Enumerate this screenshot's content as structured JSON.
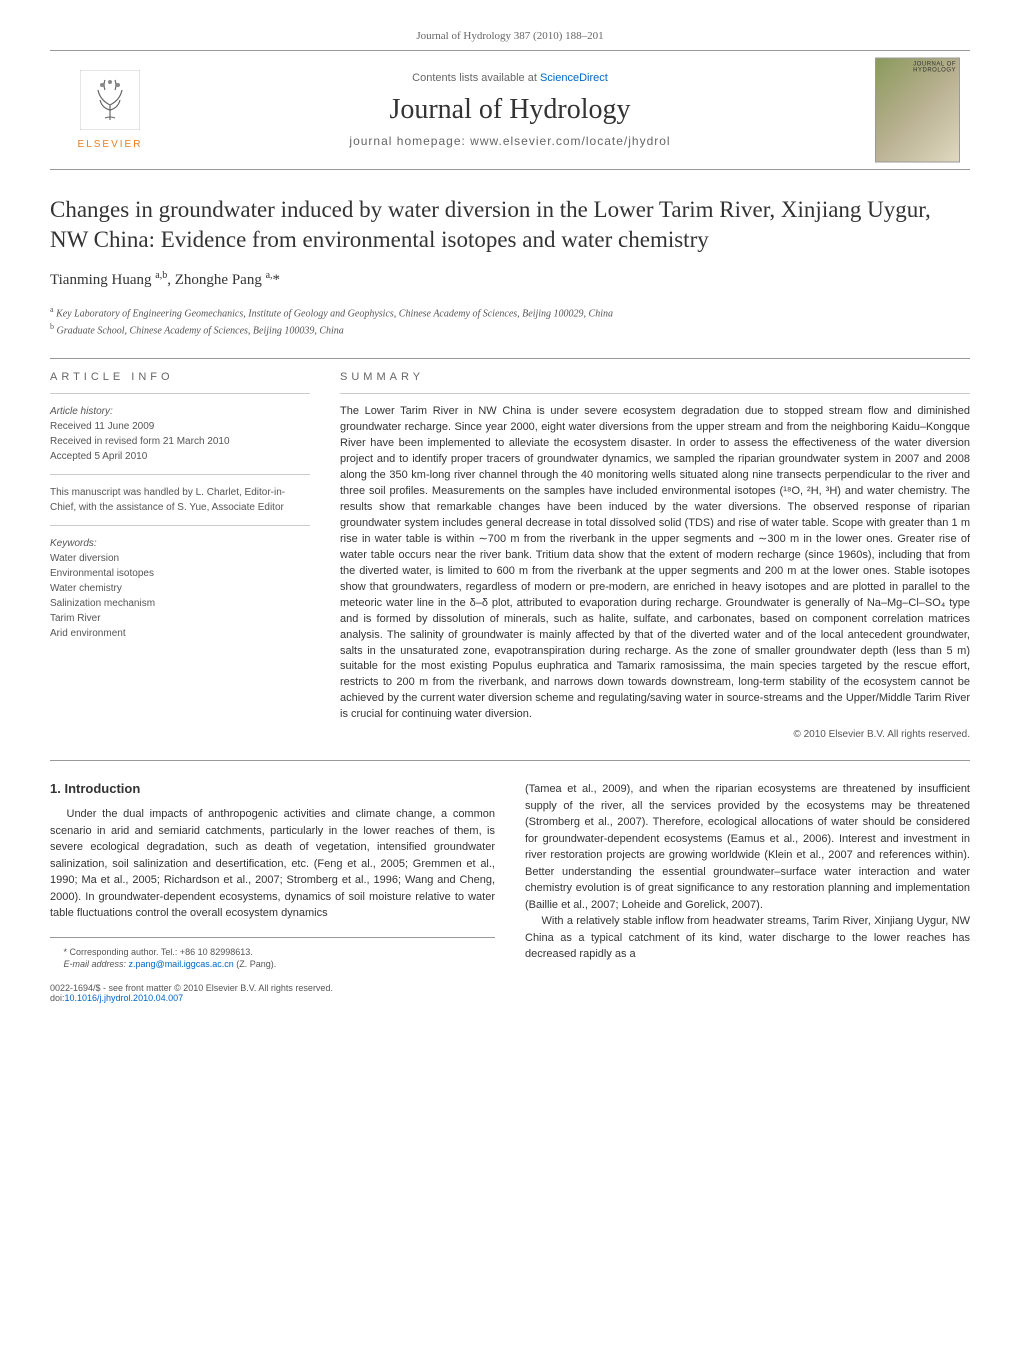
{
  "citation": "Journal of Hydrology 387 (2010) 188–201",
  "header": {
    "contents_prefix": "Contents lists available at ",
    "contents_link": "ScienceDirect",
    "journal_name": "Journal of Hydrology",
    "homepage_prefix": "journal homepage: ",
    "homepage_url": "www.elsevier.com/locate/jhydrol",
    "publisher_name": "ELSEVIER",
    "cover_label": "JOURNAL OF HYDROLOGY"
  },
  "article": {
    "title": "Changes in groundwater induced by water diversion in the Lower Tarim River, Xinjiang Uygur, NW China: Evidence from environmental isotopes and water chemistry",
    "authors_html": "Tianming Huang <sup>a,b</sup>, Zhonghe Pang <sup>a,</sup>*",
    "affiliations": [
      {
        "mark": "a",
        "text": "Key Laboratory of Engineering Geomechanics, Institute of Geology and Geophysics, Chinese Academy of Sciences, Beijing 100029, China"
      },
      {
        "mark": "b",
        "text": "Graduate School, Chinese Academy of Sciences, Beijing 100039, China"
      }
    ]
  },
  "article_info": {
    "heading": "ARTICLE INFO",
    "history_label": "Article history:",
    "history": [
      "Received 11 June 2009",
      "Received in revised form 21 March 2010",
      "Accepted 5 April 2010"
    ],
    "handled_by": "This manuscript was handled by L. Charlet, Editor-in-Chief, with the assistance of S. Yue, Associate Editor",
    "keywords_label": "Keywords:",
    "keywords": [
      "Water diversion",
      "Environmental isotopes",
      "Water chemistry",
      "Salinization mechanism",
      "Tarim River",
      "Arid environment"
    ]
  },
  "summary": {
    "heading": "SUMMARY",
    "text": "The Lower Tarim River in NW China is under severe ecosystem degradation due to stopped stream flow and diminished groundwater recharge. Since year 2000, eight water diversions from the upper stream and from the neighboring Kaidu–Kongque River have been implemented to alleviate the ecosystem disaster. In order to assess the effectiveness of the water diversion project and to identify proper tracers of groundwater dynamics, we sampled the riparian groundwater system in 2007 and 2008 along the 350 km-long river channel through the 40 monitoring wells situated along nine transects perpendicular to the river and three soil profiles. Measurements on the samples have included environmental isotopes (¹⁸O, ²H, ³H) and water chemistry. The results show that remarkable changes have been induced by the water diversions. The observed response of riparian groundwater system includes general decrease in total dissolved solid (TDS) and rise of water table. Scope with greater than 1 m rise in water table is within ∼700 m from the riverbank in the upper segments and ∼300 m in the lower ones. Greater rise of water table occurs near the river bank. Tritium data show that the extent of modern recharge (since 1960s), including that from the diverted water, is limited to 600 m from the riverbank at the upper segments and 200 m at the lower ones. Stable isotopes show that groundwaters, regardless of modern or pre-modern, are enriched in heavy isotopes and are plotted in parallel to the meteoric water line in the δ–δ plot, attributed to evaporation during recharge. Groundwater is generally of Na–Mg–Cl–SO₄ type and is formed by dissolution of minerals, such as halite, sulfate, and carbonates, based on component correlation matrices analysis. The salinity of groundwater is mainly affected by that of the diverted water and of the local antecedent groundwater, salts in the unsaturated zone, evapotranspiration during recharge. As the zone of smaller groundwater depth (less than 5 m) suitable for the most existing Populus euphratica and Tamarix ramosissima, the main species targeted by the rescue effort, restricts to 200 m from the riverbank, and narrows down towards downstream, long-term stability of the ecosystem cannot be achieved by the current water diversion scheme and regulating/saving water in source-streams and the Upper/Middle Tarim River is crucial for continuing water diversion.",
    "copyright": "© 2010 Elsevier B.V. All rights reserved."
  },
  "intro": {
    "heading": "1. Introduction",
    "left_para": "Under the dual impacts of anthropogenic activities and climate change, a common scenario in arid and semiarid catchments, particularly in the lower reaches of them, is severe ecological degradation, such as death of vegetation, intensified groundwater salinization, soil salinization and desertification, etc. (Feng et al., 2005; Gremmen et al., 1990; Ma et al., 2005; Richardson et al., 2007; Stromberg et al., 1996; Wang and Cheng, 2000). In groundwater-dependent ecosystems, dynamics of soil moisture relative to water table fluctuations control the overall ecosystem dynamics",
    "right_para_1": "(Tamea et al., 2009), and when the riparian ecosystems are threatened by insufficient supply of the river, all the services provided by the ecosystems may be threatened (Stromberg et al., 2007). Therefore, ecological allocations of water should be considered for groundwater-dependent ecosystems (Eamus et al., 2006). Interest and investment in river restoration projects are growing worldwide (Klein et al., 2007 and references within). Better understanding the essential groundwater–surface water interaction and water chemistry evolution is of great significance to any restoration planning and implementation (Baillie et al., 2007; Loheide and Gorelick, 2007).",
    "right_para_2": "With a relatively stable inflow from headwater streams, Tarim River, Xinjiang Uygur, NW China as a typical catchment of its kind, water discharge to the lower reaches has decreased rapidly as a"
  },
  "footer": {
    "corr_author": "* Corresponding author. Tel.: +86 10 82998613.",
    "email_label": "E-mail address: ",
    "email": "z.pang@mail.iggcas.ac.cn",
    "email_suffix": " (Z. Pang).",
    "front_matter": "0022-1694/$ - see front matter © 2010 Elsevier B.V. All rights reserved.",
    "doi_label": "doi:",
    "doi": "10.1016/j.jhydrol.2010.04.007"
  },
  "colors": {
    "link": "#0066cc",
    "elsevier_orange": "#e67e22",
    "text": "#333333",
    "muted": "#666666"
  }
}
